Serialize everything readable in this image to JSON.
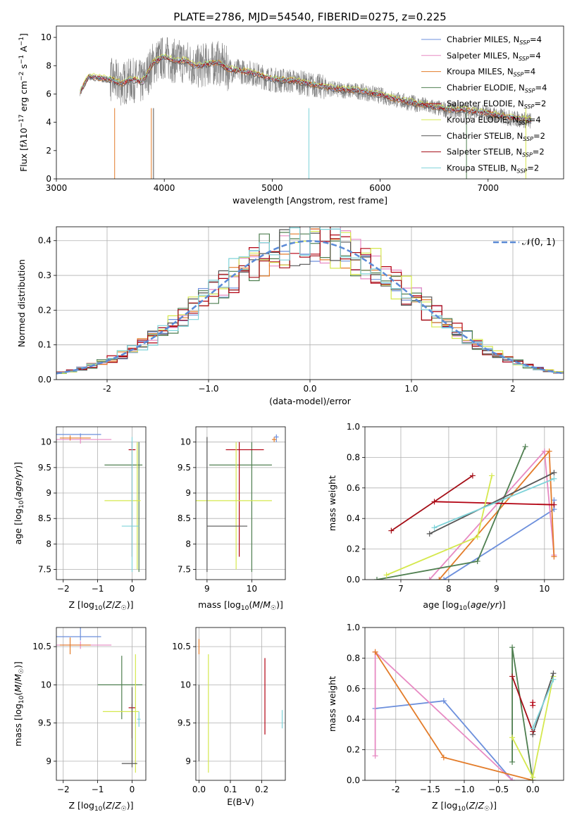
{
  "figure": {
    "title": "PLATE=2786, MJD=54540, FIBERID=0275, z=0.225"
  },
  "series_colors": [
    "#6c8fdc",
    "#e78ac3",
    "#e37c2a",
    "#4f7f50",
    "#b20010",
    "#d5e84e",
    "#555555",
    "#a40d16",
    "#7fd3d9"
  ],
  "chart_data": [
    {
      "id": "spectrum",
      "type": "line",
      "title": "PLATE=2786, MJD=54540, FIBERID=0275, z=0.225",
      "xlabel": "wavelength [Angstrom, rest frame]",
      "ylabel": "Flux [f_λ 10^-17 erg cm^-2 s^-1 A^-1]",
      "xlim": [
        3000,
        7700
      ],
      "ylim": [
        0,
        10.8
      ],
      "xticks": [
        3000,
        4000,
        5000,
        6000,
        7000
      ],
      "yticks": [
        0,
        2,
        4,
        6,
        8,
        10
      ],
      "grid": false,
      "legend_position": "top-right",
      "legend": [
        "Chabrier MILES, N_SSP=4",
        "Salpeter MILES, N_SSP=4",
        "Kroupa MILES, N_SSP=4",
        "Chabrier ELODIE, N_SSP=4",
        "Salpeter ELODIE, N_SSP=2",
        "Kroupa ELODIE, N_SSP=4",
        "Chabrier STELIB, N_SSP=2",
        "Salpeter STELIB, N_SSP=2",
        "Kroupa STELIB, N_SSP=2"
      ],
      "model_curve": {
        "x": [
          3220,
          3300,
          3400,
          3500,
          3600,
          3700,
          3800,
          3900,
          4000,
          4100,
          4200,
          4300,
          4400,
          4500,
          4600,
          4800,
          5000,
          5200,
          5400,
          5600,
          5800,
          6000,
          6200,
          6400,
          6600,
          6800,
          7000,
          7200,
          7400
        ],
        "y": [
          6.1,
          7.2,
          7.1,
          7.0,
          6.7,
          7.0,
          6.8,
          8.2,
          8.6,
          8.3,
          8.3,
          7.9,
          8.1,
          8.2,
          7.7,
          7.5,
          7.0,
          6.9,
          6.6,
          6.3,
          6.2,
          5.9,
          5.5,
          5.2,
          4.9,
          4.8,
          4.6,
          4.3,
          4.1
        ]
      }
    },
    {
      "id": "residuals",
      "type": "histogram",
      "xlabel": "(data-model)/error",
      "ylabel": "Normed distribution",
      "xlim": [
        -2.5,
        2.5
      ],
      "ylim": [
        0,
        0.44
      ],
      "xticks": [
        -2,
        -1,
        0,
        1,
        2
      ],
      "yticks": [
        0.0,
        0.1,
        0.2,
        0.3,
        0.4
      ],
      "grid": true,
      "legend": [
        "𝒩(0, 1)"
      ],
      "legend_position": "top-right",
      "bin_width": 0.1
    },
    {
      "id": "age_vs_Z",
      "type": "errorbar",
      "xlabel": "Z [log10(Z/Z☉)]",
      "ylabel": "age  [log10(age/yr)]",
      "xlim": [
        -2.2,
        0.4
      ],
      "ylim": [
        7.3,
        10.3
      ],
      "xticks": [
        -2,
        -1,
        0
      ],
      "yticks": [
        7.5,
        8.0,
        8.5,
        9.0,
        9.5,
        10.0
      ],
      "grid": true,
      "points": [
        {
          "x": -1.5,
          "xerr": [
            0.7,
            0.6
          ],
          "y": 10.15,
          "yerr": [
            0.05,
            0.02
          ],
          "c": 0
        },
        {
          "x": -1.5,
          "xerr": [
            0.8,
            0.9
          ],
          "y": 10.05,
          "yerr": [
            0.08,
            0.05
          ],
          "c": 1
        },
        {
          "x": -1.8,
          "xerr": [
            0.3,
            0.6
          ],
          "y": 10.08,
          "yerr": [
            0.05,
            0.05
          ],
          "c": 2
        },
        {
          "x": 0.2,
          "xerr": [
            1.0,
            0.1
          ],
          "y": 9.55,
          "yerr": [
            2.1,
            0.45
          ],
          "c": 3
        },
        {
          "x": 0.0,
          "xerr": [
            0.1,
            0.1
          ],
          "y": 9.85,
          "yerr": [
            2.1,
            0.15
          ],
          "c": 4
        },
        {
          "x": 0.15,
          "xerr": [
            0.95,
            0.1
          ],
          "y": 8.85,
          "yerr": [
            1.35,
            1.15
          ],
          "c": 5
        },
        {
          "x": 0.0,
          "xerr": [
            0.3,
            0.2
          ],
          "y": 8.35,
          "yerr": [
            0.9,
            1.75
          ],
          "c": 8
        }
      ]
    },
    {
      "id": "age_vs_mass",
      "type": "errorbar",
      "xlabel": "mass [log10(M/M☉)]",
      "ylabel": "",
      "xlim": [
        8.75,
        10.75
      ],
      "ylim": [
        7.3,
        10.3
      ],
      "xticks": [
        9,
        10
      ],
      "yticks": [
        7.5,
        8.0,
        8.5,
        9.0,
        9.5,
        10.0
      ],
      "grid": true,
      "points": [
        {
          "x": 10.55,
          "xerr": [
            0.05,
            0.05
          ],
          "y": 10.1,
          "yerr": [
            0.1,
            0.05
          ],
          "c": 0
        },
        {
          "x": 10.5,
          "xerr": [
            0.05,
            0.05
          ],
          "y": 10.05,
          "yerr": [
            0.05,
            0.05
          ],
          "c": 2
        },
        {
          "x": 10.0,
          "xerr": [
            0.95,
            0.45
          ],
          "y": 9.55,
          "yerr": [
            2.1,
            0.45
          ],
          "c": 3
        },
        {
          "x": 9.72,
          "xerr": [
            0.3,
            0.55
          ],
          "y": 9.85,
          "yerr": [
            2.1,
            0.15
          ],
          "c": 4
        },
        {
          "x": 9.65,
          "xerr": [
            0.95,
            0.8
          ],
          "y": 8.85,
          "yerr": [
            1.35,
            1.15
          ],
          "c": 5
        },
        {
          "x": 9.0,
          "xerr": [
            0.0,
            0.9
          ],
          "y": 8.35,
          "yerr": [
            0.9,
            1.75
          ],
          "c": 6
        }
      ]
    },
    {
      "id": "weight_vs_age",
      "type": "line",
      "xlabel": "age  [log10(age/yr)]",
      "ylabel": "mass weight",
      "xlim": [
        6.25,
        10.4
      ],
      "ylim": [
        0,
        1.0
      ],
      "xticks": [
        7,
        8,
        9,
        10
      ],
      "yticks": [
        0.0,
        0.2,
        0.4,
        0.6,
        0.8,
        1.0
      ],
      "grid": true,
      "series": [
        {
          "x": [
            7.9,
            10.2,
            10.2
          ],
          "y": [
            0.0,
            0.46,
            0.52
          ],
          "c": 0
        },
        {
          "x": [
            7.6,
            10.0,
            10.2,
            10.2
          ],
          "y": [
            0.0,
            0.84,
            0.16,
            0.15
          ],
          "c": 1
        },
        {
          "x": [
            7.8,
            10.1,
            10.2
          ],
          "y": [
            0.0,
            0.84,
            0.15
          ],
          "c": 2
        },
        {
          "x": [
            6.5,
            8.6,
            9.6
          ],
          "y": [
            0.0,
            0.12,
            0.87
          ],
          "c": 3
        },
        {
          "x": [
            7.7,
            10.2
          ],
          "y": [
            0.51,
            0.49
          ],
          "c": 4
        },
        {
          "x": [
            6.7,
            8.6,
            8.9
          ],
          "y": [
            0.03,
            0.28,
            0.68
          ],
          "c": 5
        },
        {
          "x": [
            7.6,
            10.2
          ],
          "y": [
            0.3,
            0.7
          ],
          "c": 6
        },
        {
          "x": [
            6.8,
            8.5
          ],
          "y": [
            0.32,
            0.68
          ],
          "c": 7
        },
        {
          "x": [
            7.7,
            10.2
          ],
          "y": [
            0.34,
            0.66
          ],
          "c": 8
        }
      ]
    },
    {
      "id": "mass_vs_Z",
      "type": "errorbar",
      "xlabel": "Z [log10(Z/Z☉)]",
      "ylabel": "mass [log10(M/M☉)]",
      "xlim": [
        -2.2,
        0.4
      ],
      "ylim": [
        8.75,
        10.75
      ],
      "xticks": [
        -2,
        -1,
        0
      ],
      "yticks": [
        9.0,
        9.5,
        10.0,
        10.5
      ],
      "grid": true,
      "points": [
        {
          "x": -1.5,
          "xerr": [
            0.7,
            0.6
          ],
          "y": 10.63,
          "yerr": [
            0.05,
            0.2
          ],
          "c": 0
        },
        {
          "x": -1.5,
          "xerr": [
            0.8,
            0.9
          ],
          "y": 10.52,
          "yerr": [
            0.05,
            0.05
          ],
          "c": 1
        },
        {
          "x": -1.8,
          "xerr": [
            0.3,
            0.6
          ],
          "y": 10.52,
          "yerr": [
            0.12,
            0.1
          ],
          "c": 2
        },
        {
          "x": -0.3,
          "xerr": [
            0.7,
            0.6
          ],
          "y": 10.0,
          "yerr": [
            0.45,
            0.38
          ],
          "c": 3
        },
        {
          "x": 0.0,
          "xerr": [
            0.1,
            0.1
          ],
          "y": 9.7,
          "yerr": [
            0.4,
            0.05
          ],
          "c": 4
        },
        {
          "x": 0.1,
          "xerr": [
            0.95,
            0.1
          ],
          "y": 9.65,
          "yerr": [
            0.8,
            0.75
          ],
          "c": 5
        },
        {
          "x": 0.0,
          "xerr": [
            0.3,
            0.15
          ],
          "y": 8.97,
          "yerr": [
            0.05,
            1.0
          ],
          "c": 6
        },
        {
          "x": 0.2,
          "xerr": [
            0.05,
            0.05
          ],
          "y": 9.55,
          "yerr": [
            0.1,
            0.1
          ],
          "c": 8
        }
      ]
    },
    {
      "id": "mass_vs_ebv",
      "type": "errorbar",
      "xlabel": "E(B-V)",
      "ylabel": "",
      "xlim": [
        -0.01,
        0.275
      ],
      "ylim": [
        8.75,
        10.75
      ],
      "xticks": [
        0.0,
        0.1,
        0.2
      ],
      "yticks": [
        9.0,
        9.5,
        10.0,
        10.5
      ],
      "grid": true,
      "points": [
        {
          "x": 0.0,
          "y": 10.5,
          "yerr": [
            0.1,
            0.1
          ],
          "c": 2
        },
        {
          "x": 0.0,
          "y": 9.5,
          "yerr": [
            0.5,
            0.5
          ],
          "c": 6
        },
        {
          "x": 0.03,
          "y": 9.6,
          "yerr": [
            0.75,
            0.8
          ],
          "c": 5
        },
        {
          "x": 0.21,
          "y": 9.85,
          "yerr": [
            0.5,
            0.5
          ],
          "c": 4
        },
        {
          "x": 0.265,
          "y": 9.55,
          "yerr": [
            0.12,
            0.12
          ],
          "c": 8
        }
      ]
    },
    {
      "id": "weight_vs_Z",
      "type": "line",
      "xlabel": "Z [log10(Z/Z☉)]",
      "ylabel": "mass weight",
      "xlim": [
        -2.45,
        0.45
      ],
      "ylim": [
        0,
        1.0
      ],
      "xticks": [
        -2.0,
        -1.5,
        -1.0,
        -0.5,
        0.0
      ],
      "yticks": [
        0.0,
        0.2,
        0.4,
        0.6,
        0.8,
        1.0
      ],
      "grid": true,
      "series": [
        {
          "x": [
            -2.3,
            -1.3,
            -0.3
          ],
          "y": [
            0.47,
            0.52,
            0.0
          ],
          "c": 0
        },
        {
          "x": [
            -2.3,
            -2.3,
            -0.3
          ],
          "y": [
            0.16,
            0.84,
            0.0
          ],
          "c": 1
        },
        {
          "x": [
            -2.3,
            -1.3,
            0.0
          ],
          "y": [
            0.84,
            0.15,
            0.0
          ],
          "c": 2
        },
        {
          "x": [
            -0.3,
            -0.3,
            0.0
          ],
          "y": [
            0.12,
            0.87,
            0.0
          ],
          "c": 3
        },
        {
          "x": [
            0.0,
            0.0
          ],
          "y": [
            0.49,
            0.51
          ],
          "c": 4
        },
        {
          "x": [
            -0.3,
            0.0,
            0.3
          ],
          "y": [
            0.28,
            0.02,
            0.68
          ],
          "c": 5
        },
        {
          "x": [
            0.0,
            0.3
          ],
          "y": [
            0.3,
            0.7
          ],
          "c": 6
        },
        {
          "x": [
            -0.3,
            0.0
          ],
          "y": [
            0.68,
            0.32
          ],
          "c": 7
        },
        {
          "x": [
            0.0,
            0.3
          ],
          "y": [
            0.34,
            0.66
          ],
          "c": 8
        }
      ]
    }
  ]
}
